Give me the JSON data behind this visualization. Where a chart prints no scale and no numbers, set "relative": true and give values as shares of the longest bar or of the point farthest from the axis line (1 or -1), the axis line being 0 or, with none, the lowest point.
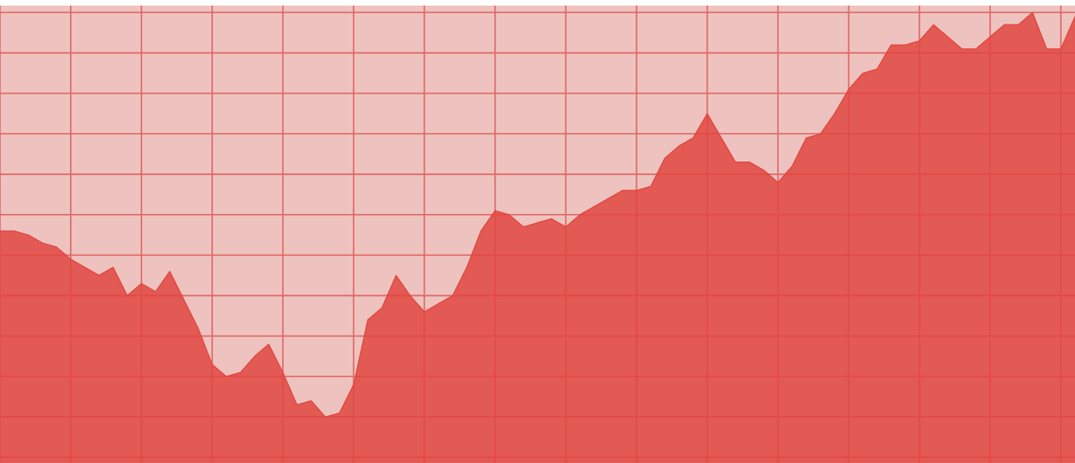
{
  "chart_data": {
    "type": "area",
    "relative": true,
    "grid": true,
    "color": "#e0463f",
    "categories": [
      null,
      null,
      null,
      null,
      null,
      null,
      null,
      null,
      null,
      null,
      null,
      null,
      null,
      null,
      null,
      null,
      null,
      null,
      null,
      null,
      null,
      null,
      null,
      null,
      null,
      null,
      null,
      null,
      null,
      null,
      null,
      null,
      null,
      null,
      null,
      null,
      null,
      null,
      null,
      null,
      null,
      null,
      null,
      null,
      null,
      null,
      null,
      null,
      null,
      null,
      null,
      null,
      null,
      null,
      null,
      null,
      null,
      null,
      null,
      null,
      null,
      null,
      null,
      null,
      null,
      null,
      null,
      null,
      null,
      null,
      null,
      null,
      null,
      null,
      null,
      null,
      null
    ],
    "values": [
      0.46,
      0.46,
      0.45,
      0.43,
      0.42,
      0.39,
      0.37,
      0.35,
      0.37,
      0.3,
      0.33,
      0.31,
      0.36,
      0.29,
      0.22,
      0.13,
      0.1,
      0.11,
      0.15,
      0.18,
      0.11,
      0.03,
      0.04,
      0,
      0.01,
      0.08,
      0.24,
      0.27,
      0.35,
      0.3,
      0.26,
      0.28,
      0.3,
      0.37,
      0.46,
      0.51,
      0.5,
      0.47,
      0.48,
      0.49,
      0.47,
      0.5,
      0.52,
      0.54,
      0.56,
      0.56,
      0.57,
      0.64,
      0.67,
      0.69,
      0.75,
      0.69,
      0.63,
      0.63,
      0.61,
      0.58,
      0.62,
      0.69,
      0.7,
      0.75,
      0.81,
      0.85,
      0.86,
      0.92,
      0.92,
      0.93,
      0.97,
      0.94,
      0.91,
      0.91,
      0.94,
      0.97,
      0.97,
      1.0,
      0.91,
      0.91,
      0.99
    ]
  }
}
